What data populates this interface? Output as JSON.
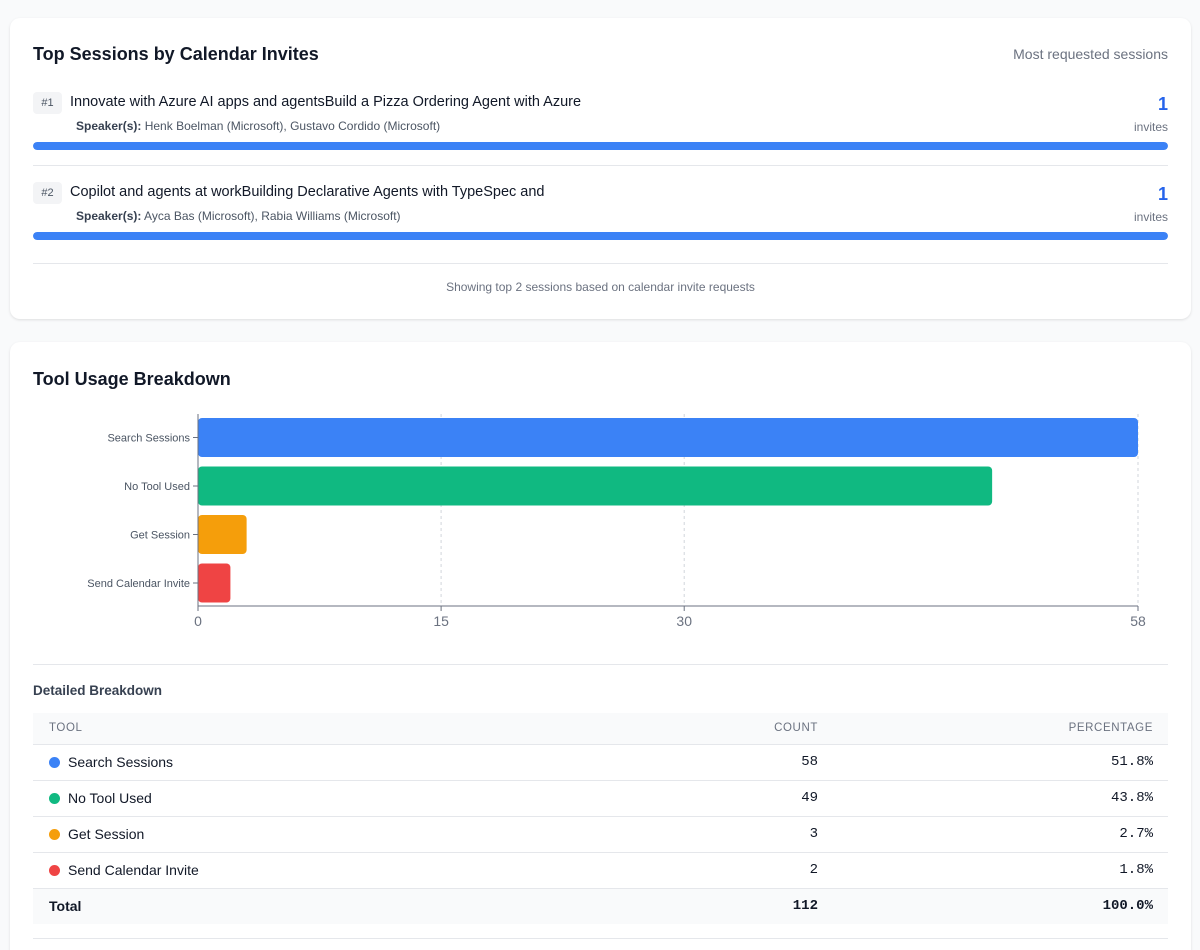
{
  "top_sessions": {
    "title": "Top Sessions by Calendar Invites",
    "subtitle": "Most requested sessions",
    "speakers_label": "Speaker(s):",
    "sessions": [
      {
        "rank": "#1",
        "title": "Innovate with Azure AI apps and agentsBuild a Pizza Ordering Agent with Azure",
        "speakers": "Henk Boelman (Microsoft), Gustavo Cordido (Microsoft)",
        "count": "1",
        "unit": "invites",
        "share": 1.0
      },
      {
        "rank": "#2",
        "title": "Copilot and agents at workBuilding Declarative Agents with TypeSpec and",
        "speakers": "Ayca Bas (Microsoft), Rabia Williams (Microsoft)",
        "count": "1",
        "unit": "invites",
        "share": 1.0
      }
    ],
    "footnote": "Showing top 2 sessions based on calendar invite requests"
  },
  "tool_usage": {
    "title": "Tool Usage Breakdown",
    "detail_title": "Detailed Breakdown",
    "table": {
      "headers": {
        "tool": "TOOL",
        "count": "COUNT",
        "percentage": "PERCENTAGE"
      },
      "rows": [
        {
          "tool": "Search Sessions",
          "count": "58",
          "percentage": "51.8%",
          "color": "#3b82f6"
        },
        {
          "tool": "No Tool Used",
          "count": "49",
          "percentage": "43.8%",
          "color": "#10b981"
        },
        {
          "tool": "Get Session",
          "count": "3",
          "percentage": "2.7%",
          "color": "#f59e0b"
        },
        {
          "tool": "Send Calendar Invite",
          "count": "2",
          "percentage": "1.8%",
          "color": "#ef4444"
        }
      ],
      "total": {
        "label": "Total",
        "count": "112",
        "percentage": "100.0%"
      }
    }
  },
  "chart_data": {
    "type": "bar",
    "orientation": "horizontal",
    "categories": [
      "Search Sessions",
      "No Tool Used",
      "Get Session",
      "Send Calendar Invite"
    ],
    "values": [
      58,
      49,
      3,
      2
    ],
    "colors": [
      "#3b82f6",
      "#10b981",
      "#f59e0b",
      "#ef4444"
    ],
    "xticks": [
      0,
      15,
      30,
      58
    ],
    "xlim": [
      0,
      58
    ],
    "grid": true,
    "title": "",
    "xlabel": "",
    "ylabel": ""
  }
}
